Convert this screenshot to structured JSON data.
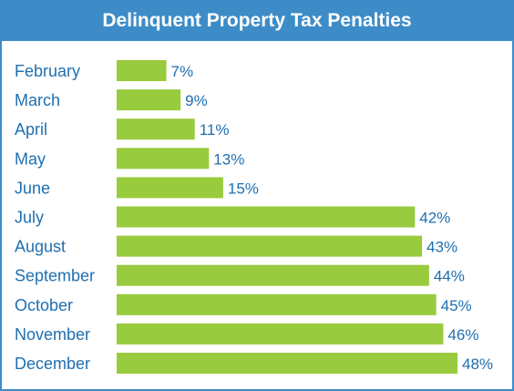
{
  "colors": {
    "header": "#3d8cc8",
    "bar": "#98cb3d",
    "category_text": "#1f6fb0",
    "value_text": "#1f6fb0",
    "title_text": "#ffffff"
  },
  "chart_data": {
    "type": "bar",
    "orientation": "horizontal",
    "title": "Delinquent Property Tax Penalties",
    "categories": [
      "February",
      "March",
      "April",
      "May",
      "June",
      "July",
      "August",
      "September",
      "October",
      "November",
      "December"
    ],
    "values": [
      7,
      9,
      11,
      13,
      15,
      42,
      43,
      44,
      45,
      46,
      48
    ],
    "value_labels": [
      "7%",
      "9%",
      "11%",
      "13%",
      "15%",
      "42%",
      "43%",
      "44%",
      "45%",
      "46%",
      "48%"
    ],
    "xlim": [
      0,
      48
    ],
    "grid": false,
    "legend": "none"
  }
}
